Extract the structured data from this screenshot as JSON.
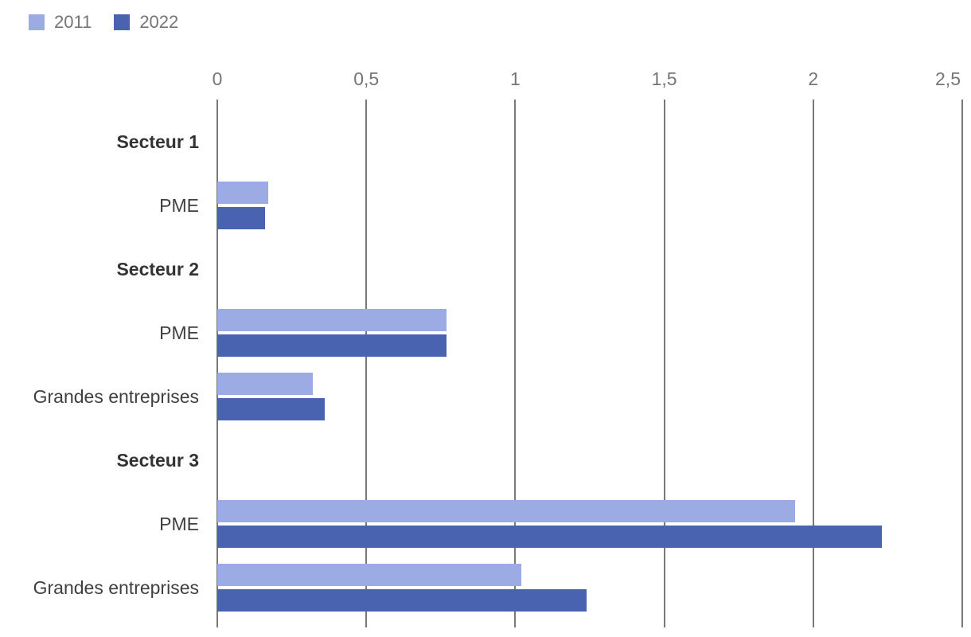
{
  "chart_data": {
    "type": "bar",
    "orientation": "horizontal",
    "title": "",
    "xlabel": "",
    "ylabel": "",
    "grid": true,
    "legend_position": "top-left",
    "xlim": [
      0,
      2.5
    ],
    "x_ticks": [
      {
        "value": 0,
        "label": "0"
      },
      {
        "value": 0.5,
        "label": "0,5"
      },
      {
        "value": 1,
        "label": "1"
      },
      {
        "value": 1.5,
        "label": "1,5"
      },
      {
        "value": 2,
        "label": "2"
      },
      {
        "value": 2.5,
        "label": "2,5"
      }
    ],
    "series": [
      {
        "name": "2011",
        "color": "#9CABE4"
      },
      {
        "name": "2022",
        "color": "#4A63B1"
      }
    ],
    "rows": [
      {
        "label": "Secteur 1",
        "type": "section_header",
        "values": null
      },
      {
        "label": "PME",
        "type": "data",
        "values": [
          0.17,
          0.16
        ]
      },
      {
        "label": "Secteur 2",
        "type": "section_header",
        "values": null
      },
      {
        "label": "PME",
        "type": "data",
        "values": [
          0.77,
          0.77
        ]
      },
      {
        "label": "Grandes entreprises",
        "type": "data",
        "values": [
          0.32,
          0.36
        ]
      },
      {
        "label": "Secteur 3",
        "type": "section_header",
        "values": null
      },
      {
        "label": "PME",
        "type": "data",
        "values": [
          1.94,
          2.23
        ]
      },
      {
        "label": "Grandes entreprises",
        "type": "data",
        "values": [
          1.02,
          1.24
        ]
      }
    ]
  },
  "colors": {
    "background": "#ffffff",
    "gridline": "#787878",
    "axis_label_text": "#757575",
    "legend_text": "#757575",
    "category_text": "#3f3f3f",
    "section_header_text": "#333333"
  }
}
